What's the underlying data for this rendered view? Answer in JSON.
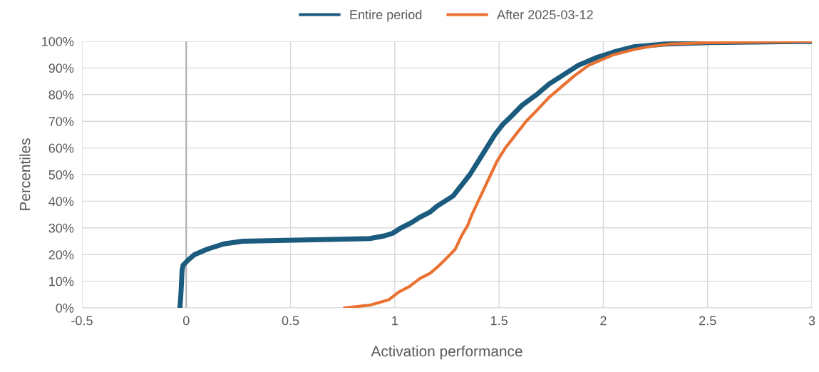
{
  "chart_data": {
    "type": "line",
    "xlabel": "Activation performance",
    "ylabel": "Percentiles",
    "xlim": [
      -0.5,
      3
    ],
    "xticks": [
      -0.5,
      0,
      0.5,
      1,
      1.5,
      2,
      2.5,
      3
    ],
    "ylim": [
      0,
      100
    ],
    "yticks": [
      {
        "value": 0,
        "label": "0%"
      },
      {
        "value": 10,
        "label": "10%"
      },
      {
        "value": 20,
        "label": "20%"
      },
      {
        "value": 30,
        "label": "30%"
      },
      {
        "value": 40,
        "label": "40%"
      },
      {
        "value": 50,
        "label": "50%"
      },
      {
        "value": 60,
        "label": "60%"
      },
      {
        "value": 70,
        "label": "70%"
      },
      {
        "value": 80,
        "label": "80%"
      },
      {
        "value": 90,
        "label": "90%"
      },
      {
        "value": 100,
        "label": "100%"
      }
    ],
    "grid": true,
    "legend": "top",
    "marker": "none",
    "line_style": "solid",
    "ref_lines": [
      {
        "axis": "x",
        "value": 0,
        "label": null,
        "color": "#b0b0b0"
      }
    ],
    "series": [
      {
        "name": "Entire period",
        "color": "#1b5b7d",
        "x": [
          -0.03,
          -0.025,
          -0.02,
          -0.015,
          0.01,
          0.04,
          0.1,
          0.18,
          0.27,
          0.88,
          0.95,
          0.99,
          1.03,
          1.08,
          1.12,
          1.17,
          1.2,
          1.24,
          1.28,
          1.31,
          1.36,
          1.4,
          1.44,
          1.48,
          1.52,
          1.56,
          1.61,
          1.68,
          1.74,
          1.82,
          1.88,
          1.97,
          2.05,
          2.15,
          2.3,
          2.5,
          3
        ],
        "values": [
          0,
          6,
          14,
          16,
          18,
          20,
          22,
          24,
          25,
          26,
          27,
          28,
          30,
          32,
          34,
          36,
          38,
          40,
          42,
          45,
          50,
          55,
          60,
          65,
          69,
          72,
          76,
          80,
          84,
          88,
          91,
          94,
          96,
          98,
          99,
          99.5,
          100
        ]
      },
      {
        "name": "After 2025-03-12",
        "color": "#e97132",
        "x": [
          0.76,
          0.88,
          0.97,
          1.02,
          1.07,
          1.12,
          1.17,
          1.2,
          1.24,
          1.29,
          1.32,
          1.35,
          1.37,
          1.4,
          1.43,
          1.46,
          1.49,
          1.53,
          1.58,
          1.63,
          1.68,
          1.74,
          1.8,
          1.86,
          1.93,
          1.99,
          2.05,
          2.15,
          2.22,
          2.32,
          2.5,
          3
        ],
        "values": [
          0,
          1,
          3,
          6,
          8,
          11,
          13,
          15,
          18,
          22,
          27,
          31,
          35,
          40,
          45,
          50,
          55,
          60,
          65,
          70,
          74,
          79,
          83,
          87,
          91,
          93,
          95,
          97,
          98,
          99,
          99.5,
          100
        ]
      }
    ]
  }
}
